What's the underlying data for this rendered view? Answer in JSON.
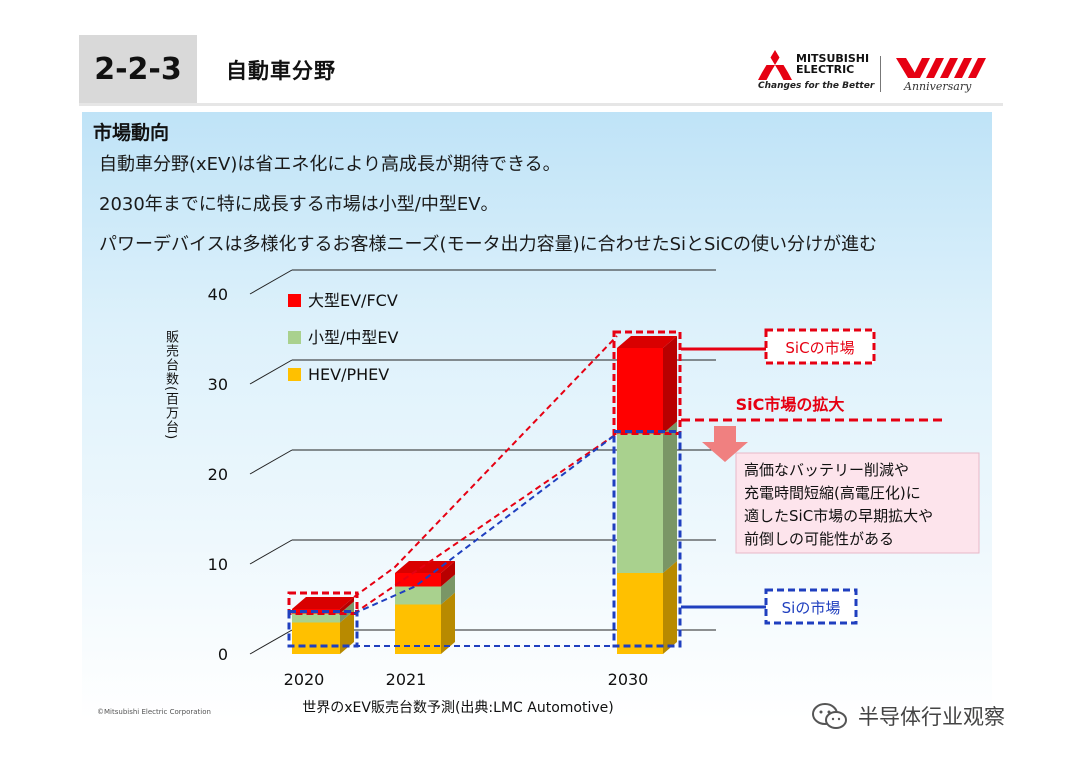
{
  "header": {
    "section_number": "2-2-3",
    "title": "自動車分野",
    "logo_name_line1": "MITSUBISHI",
    "logo_name_line2": "ELECTRIC",
    "logo_tagline": "Changes for the Better",
    "anniversary_text": "Anniversary"
  },
  "content": {
    "heading": "市場動向",
    "bullets": [
      "自動車分野(xEV)は省エネ化により高成長が期待できる。",
      "2030年までに特に成長する市場は小型/中型EV。",
      "パワーデバイスは多様化するお客様ニーズ(モータ出力容量)に合わせたSiとSiCの使い分けが進む"
    ]
  },
  "chart_data": {
    "type": "bar",
    "stacked": true,
    "categories": [
      "2020",
      "2021",
      "2030"
    ],
    "series": [
      {
        "name": "HEV/PHEV",
        "values": [
          3.5,
          5.5,
          9.0
        ],
        "color": "#ffc000"
      },
      {
        "name": "小型/中型EV",
        "values": [
          1.0,
          2.0,
          15.5
        ],
        "color": "#a9d18e"
      },
      {
        "name": "大型EV/FCV",
        "values": [
          0.5,
          1.5,
          9.5
        ],
        "color": "#ff0000"
      }
    ],
    "ylabel": "販売台数(百万台)",
    "xlabel": "世界のxEV販売台数予測(出典:LMC Automotive)",
    "yticks": [
      "0",
      "10",
      "20",
      "30",
      "40"
    ],
    "ylim": [
      0,
      40
    ],
    "annotations": {
      "sic_market": "SiCの市場",
      "si_market": "Siの市場",
      "sic_expansion": "SiC市場の拡大",
      "note_lines": [
        "高価なバッテリー削減や",
        "充電時間短縮(高電圧化)に",
        "適したSiC市場の早期拡大や",
        "前倒しの可能性がある"
      ]
    },
    "colors": {
      "sic": "#e60012",
      "si": "#1f3fbf",
      "arrow": "#f08080",
      "note_bg": "#fde4ec"
    }
  },
  "footer": {
    "copyright": "©Mitsubishi Electric Corporation",
    "wechat_label": "半导体行业观察"
  }
}
